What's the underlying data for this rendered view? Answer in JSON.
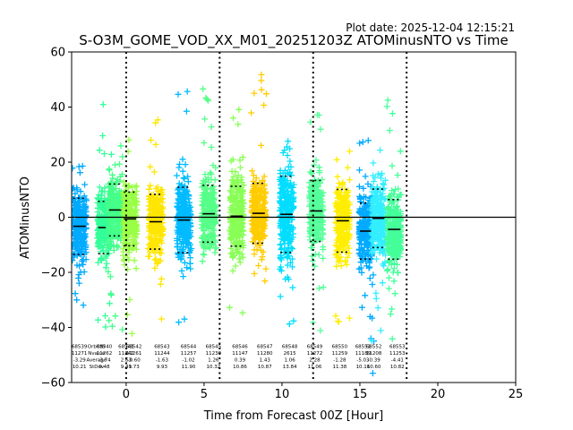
{
  "plot_date": "Plot date: 2025-12-04 12:15:21",
  "chart_data": {
    "type": "scatter",
    "title": "S-O3M_GOME_VOD_XX_M01_20251203Z ATOMinusNTO vs Time",
    "xlabel": "Time from Forecast 00Z [Hour]",
    "ylabel": "ATOMinusNTO",
    "xlim": [
      -3.5,
      25
    ],
    "ylim": [
      -60,
      60
    ],
    "xticks": [
      0,
      5,
      10,
      15,
      20,
      25
    ],
    "yticks": [
      -60,
      -40,
      -20,
      0,
      20,
      40,
      60
    ],
    "vlines": [
      0,
      6,
      12,
      18
    ],
    "hline": 0,
    "stats_labels": [
      "OrbitNr",
      "Nvalue",
      "Average",
      "StDev"
    ],
    "orbits": [
      {
        "orbit": "68539",
        "x": -3.0,
        "n": "11271",
        "mean": -3.29,
        "std": 10.21,
        "ymin": -40,
        "ymax": 30,
        "color": "#00aaff"
      },
      {
        "orbit": "68540",
        "x": -1.4,
        "n": "11262",
        "mean": -3.74,
        "std": 9.48,
        "ymin": -41,
        "ymax": 45,
        "color": "#33ff99"
      },
      {
        "orbit": "68541",
        "x": -0.7,
        "n": "11242",
        "mean": 2.63,
        "std": 9.41,
        "ymin": -43,
        "ymax": 44,
        "color": "#44ff88"
      },
      {
        "orbit": "68542",
        "x": 0.25,
        "n": "11261",
        "mean": -0.6,
        "std": 9.73,
        "ymin": -43,
        "ymax": 33,
        "color": "#99ff44"
      },
      {
        "orbit": "68543",
        "x": 1.9,
        "n": "11244",
        "mean": -1.63,
        "std": 9.93,
        "ymin": -38,
        "ymax": 37,
        "color": "#ffe600"
      },
      {
        "orbit": "68544",
        "x": 3.7,
        "n": "11257",
        "mean": -1.02,
        "std": 11.9,
        "ymin": -42,
        "ymax": 50,
        "color": "#00bbff"
      },
      {
        "orbit": "68545",
        "x": 5.3,
        "n": "11230",
        "mean": 1.26,
        "std": 10.32,
        "ymin": -32,
        "ymax": 57,
        "color": "#55ff88"
      },
      {
        "orbit": "68546",
        "x": 7.1,
        "n": "11147",
        "mean": 0.39,
        "std": 10.86,
        "ymin": -37,
        "ymax": 51,
        "color": "#88ff55"
      },
      {
        "orbit": "68547",
        "x": 8.5,
        "n": "11280",
        "mean": 1.43,
        "std": 10.87,
        "ymin": -34,
        "ymax": 58,
        "color": "#ffcc00"
      },
      {
        "orbit": "68548",
        "x": 10.3,
        "n": "2615",
        "mean": 1.06,
        "std": 13.84,
        "ymin": -58,
        "ymax": 38,
        "color": "#00ddff"
      },
      {
        "orbit": "68549",
        "x": 12.2,
        "n": "11272",
        "mean": 2.28,
        "std": 11.06,
        "ymin": -42,
        "ymax": 47,
        "color": "#55ff99"
      },
      {
        "orbit": "68550",
        "x": 13.9,
        "n": "11259",
        "mean": -1.28,
        "std": 11.38,
        "ymin": -40,
        "ymax": 30,
        "color": "#ffee00"
      },
      {
        "orbit": "68551",
        "x": 15.4,
        "n": "11189",
        "mean": -5.03,
        "std": 10.16,
        "ymin": -58,
        "ymax": 32,
        "color": "#00aaff"
      },
      {
        "orbit": "68552",
        "x": 16.2,
        "n": "11208",
        "mean": -0.39,
        "std": 10.6,
        "ymin": -48,
        "ymax": 28,
        "color": "#33eeff"
      },
      {
        "orbit": "68553",
        "x": 17.2,
        "n": "11253",
        "mean": -4.41,
        "std": 10.82,
        "ymin": -50,
        "ymax": 45,
        "color": "#44ff99"
      }
    ],
    "stats_display": [
      {
        "x": -3.0,
        "orbit": "68539",
        "n": "11271",
        "mean": "-3.29",
        "std": "10.21"
      },
      {
        "x": -1.4,
        "orbit": "68540",
        "n": "11262",
        "mean": "-3.74",
        "std": "9.48"
      },
      {
        "x": 0.0,
        "orbit": "68541",
        "n": "11242",
        "mean": "2.63",
        "std": "9.41"
      },
      {
        "x": 0.5,
        "orbit": "68542",
        "n": "11261",
        "mean": "-0.60",
        "std": "9.73"
      },
      {
        "x": 2.3,
        "orbit": "68543",
        "n": "11244",
        "mean": "-1.63",
        "std": "9.93"
      },
      {
        "x": 4.0,
        "orbit": "68544",
        "n": "11257",
        "mean": "-1.02",
        "std": "11.90"
      },
      {
        "x": 5.6,
        "orbit": "68545",
        "n": "11230",
        "mean": "1.26",
        "std": "10.32"
      },
      {
        "x": 7.3,
        "orbit": "68546",
        "n": "11147",
        "mean": "0.39",
        "std": "10.86"
      },
      {
        "x": 8.9,
        "orbit": "68547",
        "n": "11280",
        "mean": "1.43",
        "std": "10.87"
      },
      {
        "x": 10.5,
        "orbit": "68548",
        "n": "2615",
        "mean": "1.06",
        "std": "13.84"
      },
      {
        "x": 12.1,
        "orbit": "68549",
        "n": "11272",
        "mean": "2.28",
        "std": "11.06"
      },
      {
        "x": 13.7,
        "orbit": "68550",
        "n": "11259",
        "mean": "-1.28",
        "std": "11.38"
      },
      {
        "x": 15.2,
        "orbit": "68551",
        "n": "11189",
        "mean": "-5.03",
        "std": "10.16"
      },
      {
        "x": 15.9,
        "orbit": "68552",
        "n": "11208",
        "mean": "-0.39",
        "std": "10.60"
      },
      {
        "x": 17.4,
        "orbit": "68553",
        "n": "11253",
        "mean": "-4.41",
        "std": "10.82"
      }
    ]
  }
}
